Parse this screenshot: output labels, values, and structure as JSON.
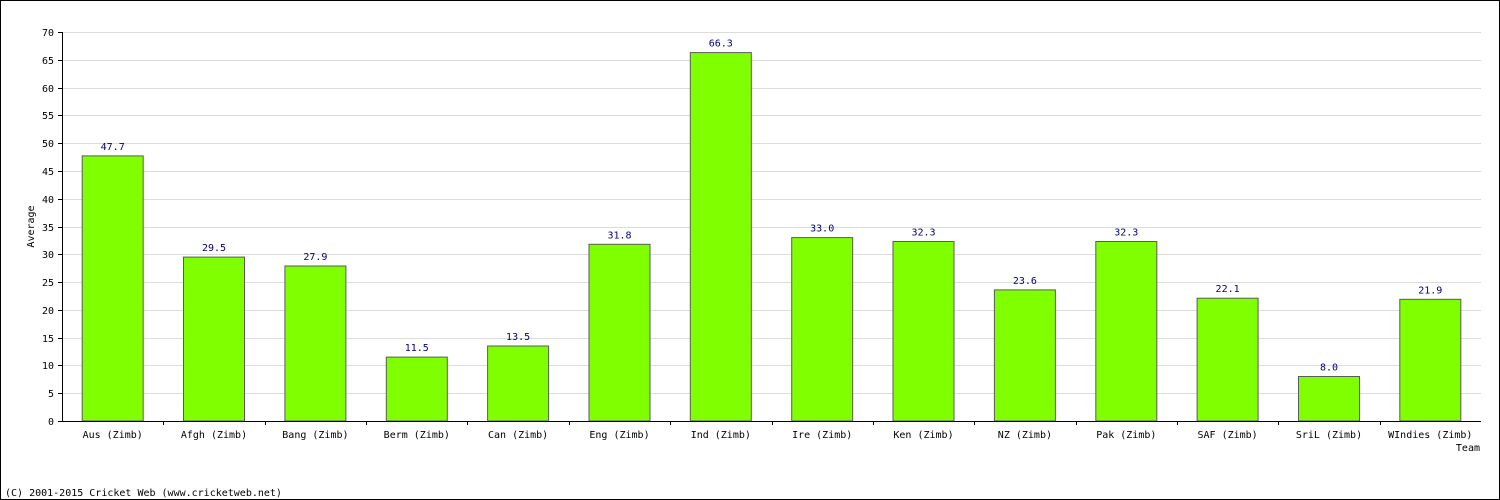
{
  "chart_data": {
    "type": "bar",
    "categories": [
      "Aus (Zimb)",
      "Afgh (Zimb)",
      "Bang (Zimb)",
      "Berm (Zimb)",
      "Can (Zimb)",
      "Eng (Zimb)",
      "Ind (Zimb)",
      "Ire (Zimb)",
      "Ken (Zimb)",
      "NZ (Zimb)",
      "Pak (Zimb)",
      "SAF (Zimb)",
      "SriL (Zimb)",
      "WIndies (Zimb)"
    ],
    "values": [
      47.7,
      29.5,
      27.9,
      11.5,
      13.5,
      31.8,
      66.3,
      33.0,
      32.3,
      23.6,
      32.3,
      22.1,
      8.0,
      21.9
    ],
    "value_labels": [
      "47.7",
      "29.5",
      "27.9",
      "11.5",
      "13.5",
      "31.8",
      "66.3",
      "33.0",
      "32.3",
      "23.6",
      "32.3",
      "22.1",
      "8.0",
      "21.9"
    ],
    "xlabel": "Team",
    "ylabel": "Average",
    "ylim": [
      0,
      70
    ],
    "yticks": [
      "0",
      "5",
      "10",
      "15",
      "20",
      "25",
      "30",
      "35",
      "40",
      "45",
      "50",
      "55",
      "60",
      "65",
      "70"
    ],
    "grid": true,
    "legend": "none",
    "bar_color": "#80ff00",
    "label_color": "#000080"
  },
  "footer": {
    "copyright": "(C) 2001-2015 Cricket Web (www.cricketweb.net)"
  }
}
